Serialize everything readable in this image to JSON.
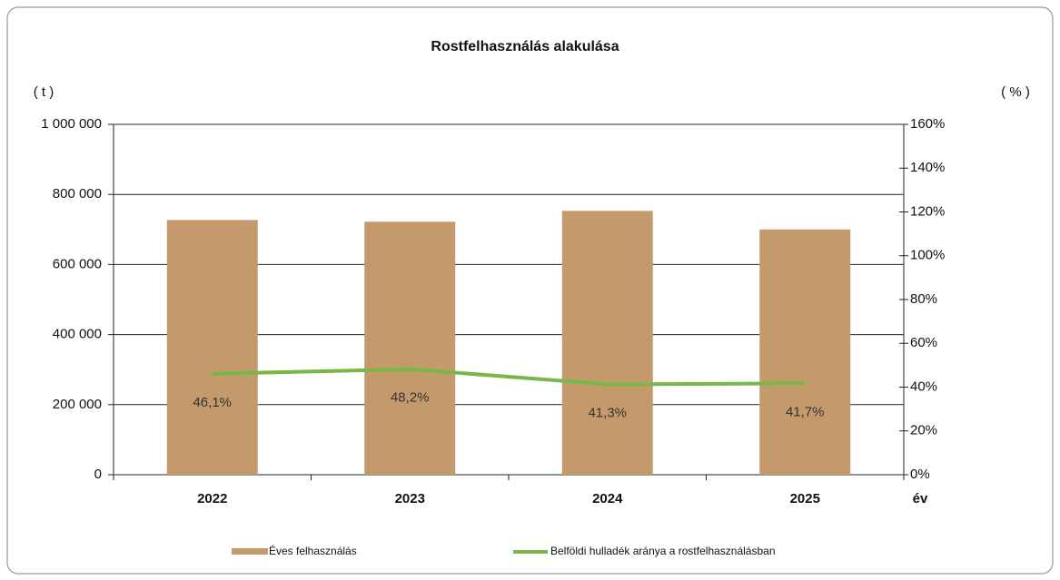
{
  "chart_data": {
    "type": "bar",
    "title": "Rostfelhasználás alakulása",
    "y_label": "( t )",
    "y2_label": "( % )",
    "x_label": "év",
    "categories": [
      "2022",
      "2023",
      "2024",
      "2025"
    ],
    "series": [
      {
        "name": "Éves felhasználás",
        "type": "bar",
        "color": "#c49a6c",
        "values": [
          727000,
          722000,
          753000,
          700000
        ]
      },
      {
        "name": "Belföldi hulladék aránya a rostfelhasználásban",
        "type": "line",
        "axis": "y2",
        "color": "#7ab648",
        "values": [
          46.1,
          48.2,
          41.3,
          41.7
        ],
        "value_labels": [
          "46,1%",
          "48,2%",
          "41,3%",
          "41,7%"
        ]
      }
    ],
    "ylim": [
      0,
      1000000
    ],
    "yticks": [
      0,
      {
        "value": 200000,
        "label": "200 000"
      },
      {
        "value": 400000,
        "label": "400 000"
      },
      {
        "value": 600000,
        "label": "600 000"
      },
      {
        "value": 800000,
        "label": "800 000"
      },
      {
        "value": 1000000,
        "label": "1 000 000"
      }
    ],
    "y2lim": [
      0,
      160
    ],
    "y2ticks": [
      {
        "value": 0,
        "label": "0%"
      },
      {
        "value": 20,
        "label": "20%"
      },
      {
        "value": 40,
        "label": "40%"
      },
      {
        "value": 60,
        "label": "60%"
      },
      {
        "value": 80,
        "label": "80%"
      },
      {
        "value": 100,
        "label": "100%"
      },
      {
        "value": 120,
        "label": "120%"
      },
      {
        "value": 140,
        "label": "140%"
      },
      {
        "value": 160,
        "label": "160%"
      }
    ],
    "grid": true
  }
}
